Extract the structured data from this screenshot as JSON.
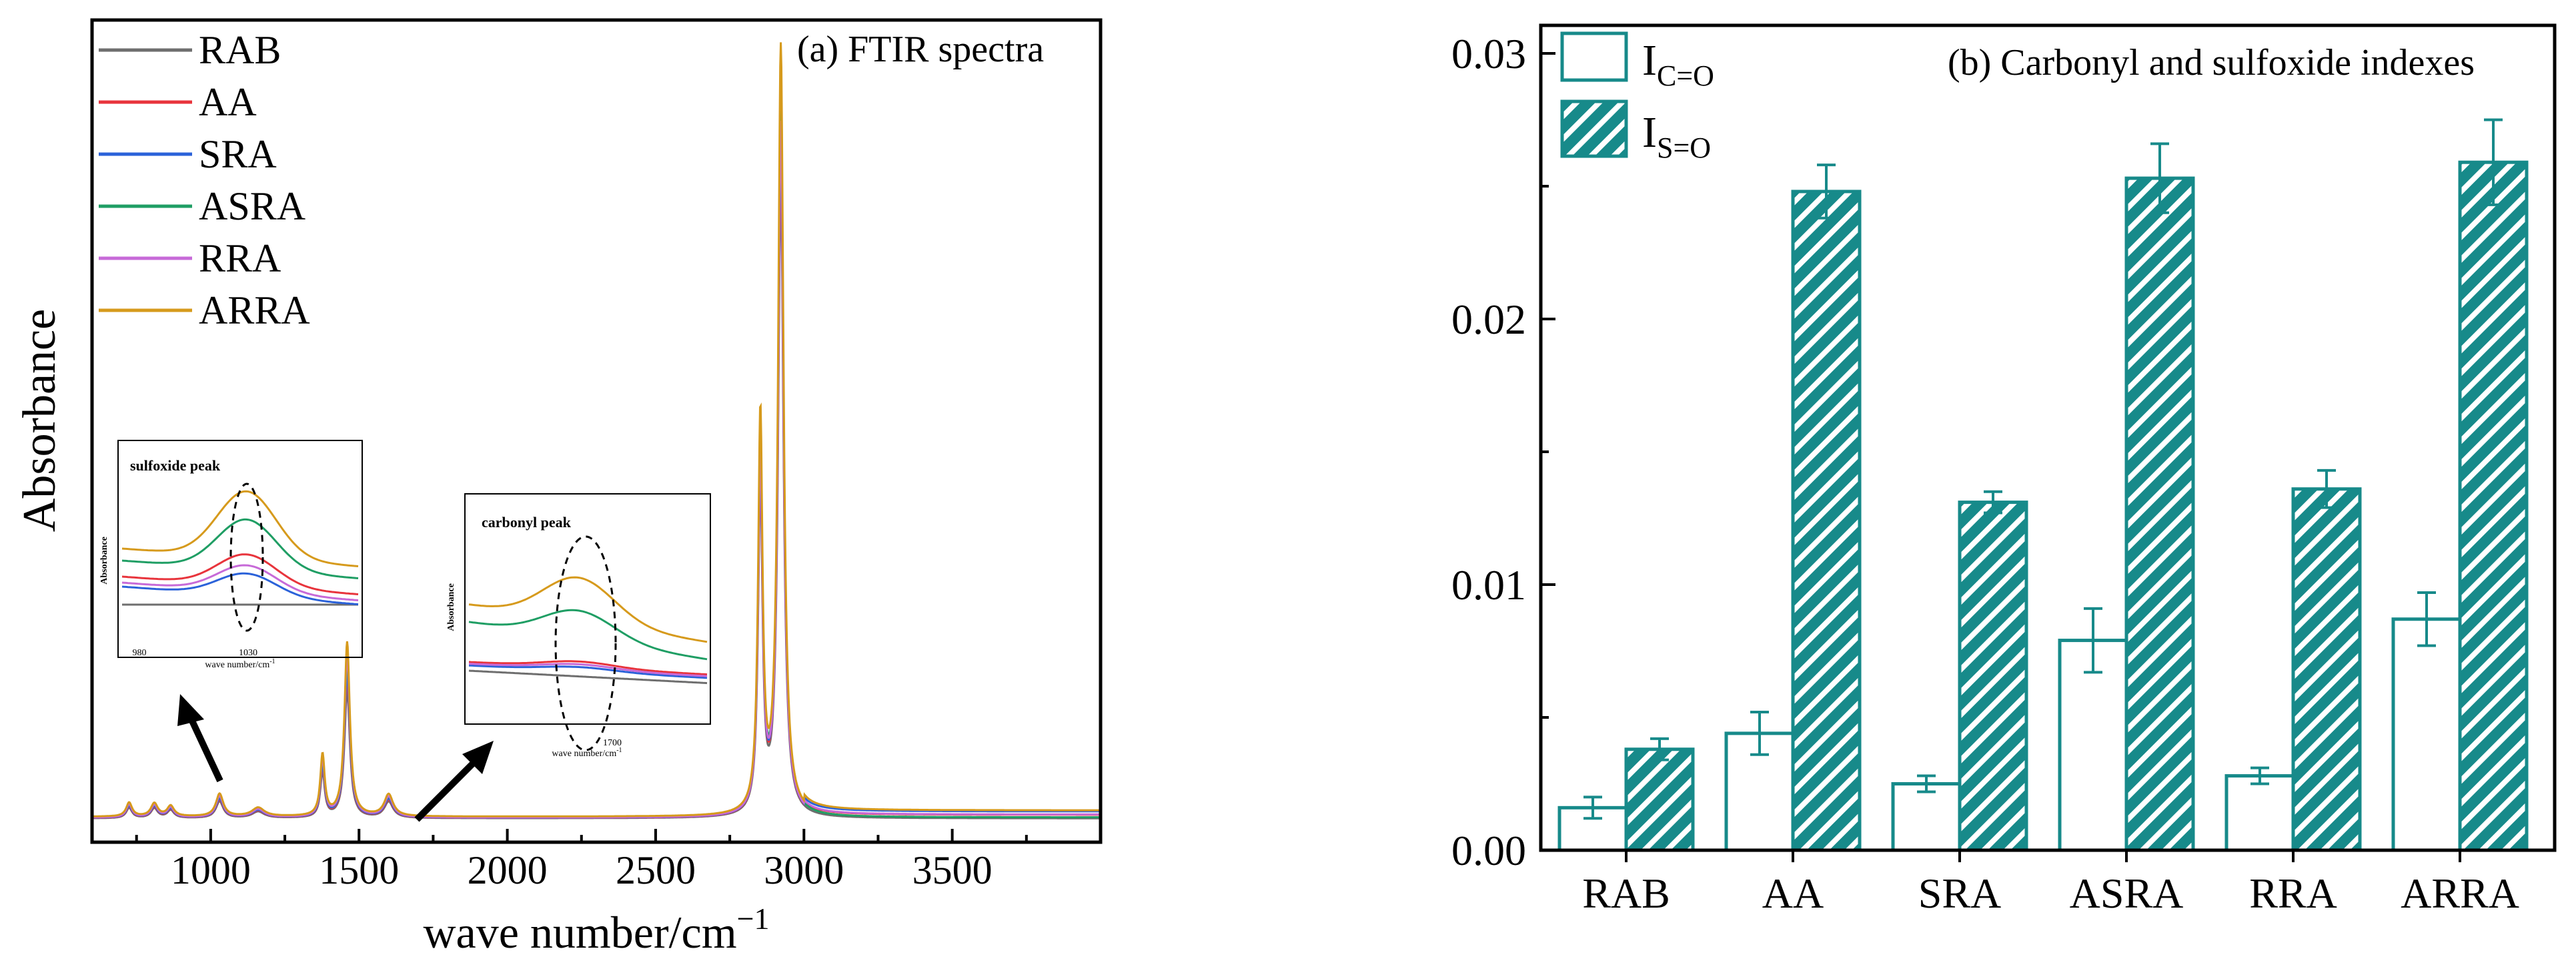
{
  "chart_data": [
    {
      "type": "line",
      "title": "(a) FTIR spectra",
      "xlabel": "wave number/cm",
      "xlabel_sup": "−1",
      "ylabel": "Absorbance",
      "xlim": [
        600,
        4000
      ],
      "ylim": [
        0,
        1
      ],
      "xticks": [
        1000,
        1500,
        2000,
        2500,
        3000,
        3500
      ],
      "xtick_labels": [
        "1000",
        "1500",
        "2000",
        "2500",
        "3000",
        "3500"
      ],
      "series": [
        {
          "name": "RAB",
          "color": "#6e6e6e",
          "peak_scale": 0.82
        },
        {
          "name": "AA",
          "color": "#e8343c",
          "peak_scale": 0.86
        },
        {
          "name": "SRA",
          "color": "#2b62d9",
          "peak_scale": 0.88
        },
        {
          "name": "ASRA",
          "color": "#1f9e64",
          "peak_scale": 0.93
        },
        {
          "name": "RRA",
          "color": "#c76ad8",
          "peak_scale": 0.9
        },
        {
          "name": "ARRA",
          "color": "#d69a1c",
          "peak_scale": 1.0
        }
      ],
      "peaks": [
        {
          "x": 725,
          "h": 0.016,
          "w": 12
        },
        {
          "x": 810,
          "h": 0.015,
          "w": 14
        },
        {
          "x": 865,
          "h": 0.012,
          "w": 14
        },
        {
          "x": 1030,
          "h": 0.026,
          "w": 15
        },
        {
          "x": 1160,
          "h": 0.01,
          "w": 25
        },
        {
          "x": 1377,
          "h": 0.07,
          "w": 9
        },
        {
          "x": 1460,
          "h": 0.2,
          "w": 11
        },
        {
          "x": 1600,
          "h": 0.025,
          "w": 18
        },
        {
          "x": 2853,
          "h": 0.5,
          "w": 9
        },
        {
          "x": 2922,
          "h": 0.97,
          "w": 11
        }
      ],
      "insets": [
        {
          "label": "sulfoxide peak",
          "ylabel": "Absorbance",
          "xlabel": "wave number/cm",
          "xlabel_sup": "-1",
          "ticks": [
            "980",
            "1030"
          ]
        },
        {
          "label": "carbonyl peak",
          "ylabel": "Absorbance",
          "xlabel": "wave number/cm",
          "xlabel_sup": "-1",
          "ticks": [
            "1700"
          ]
        }
      ]
    },
    {
      "type": "bar",
      "title": "(b) Carbonyl and sulfoxide indexes",
      "categories": [
        "RAB",
        "AA",
        "SRA",
        "ASRA",
        "RRA",
        "ARRA"
      ],
      "ylim": [
        0,
        0.031
      ],
      "yticks": [
        0,
        0.01,
        0.02,
        0.03
      ],
      "ytick_labels": [
        "0.00",
        "0.01",
        "0.02",
        "0.03"
      ],
      "color": "#178a8a",
      "series": [
        {
          "name": "I",
          "subscript": "C=O",
          "style": "open",
          "values": [
            0.0016,
            0.0044,
            0.0025,
            0.0079,
            0.0028,
            0.0087
          ],
          "errors": [
            0.0004,
            0.0008,
            0.0003,
            0.0012,
            0.0003,
            0.001
          ]
        },
        {
          "name": "I",
          "subscript": "S=O",
          "style": "hatched",
          "values": [
            0.0038,
            0.0248,
            0.0131,
            0.0253,
            0.0136,
            0.0259
          ],
          "errors": [
            0.0004,
            0.001,
            0.0004,
            0.0013,
            0.0007,
            0.0016
          ]
        }
      ]
    }
  ]
}
